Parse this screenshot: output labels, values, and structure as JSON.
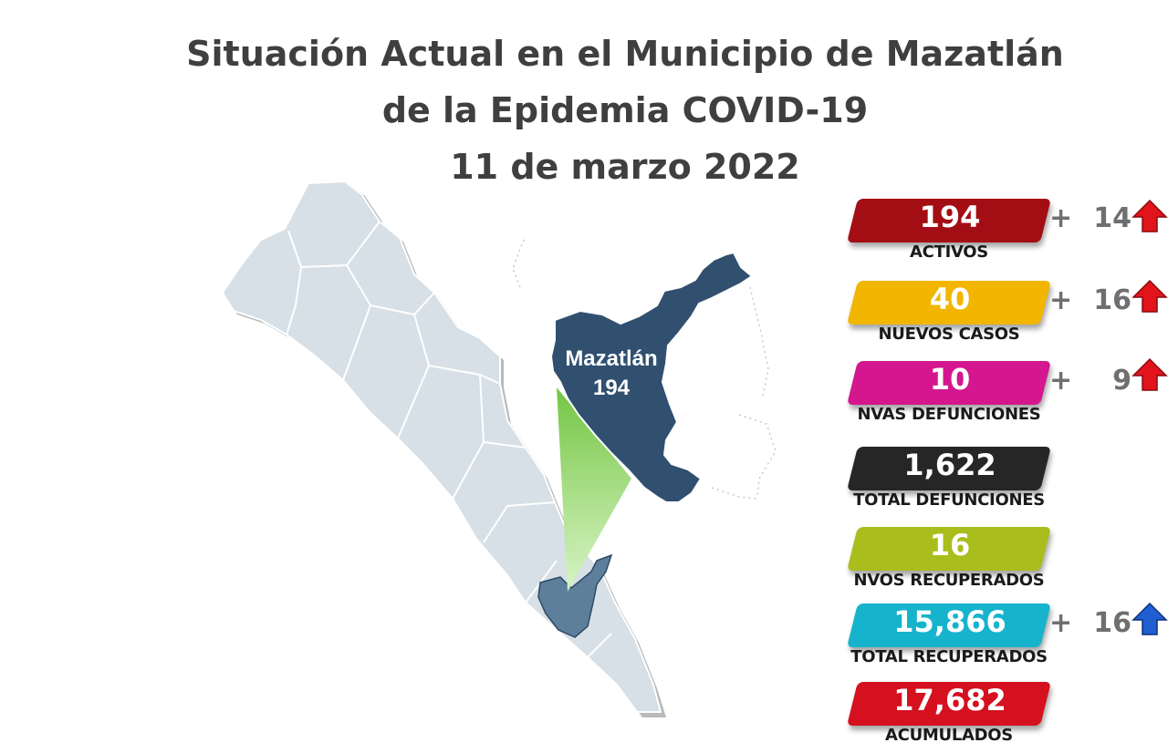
{
  "title": {
    "line1": "Situación Actual en el Municipio de Mazatlán",
    "line2": "de la Epidemia COVID-19",
    "line3": "11 de marzo 2022"
  },
  "map": {
    "region_name": "Mazatlán",
    "region_value": "194",
    "colors": {
      "state_fill": "#d6e0e6",
      "highlight_fill": "#31506f",
      "municipality_fill": "#5d7f9c",
      "callout": "#7ed957"
    }
  },
  "stats": [
    {
      "value": "194",
      "label": "ACTIVOS",
      "color": "#a30d14",
      "delta_sign": "+",
      "delta_value": "14",
      "arrow": "up-arrow-red"
    },
    {
      "value": "40",
      "label": "NUEVOS CASOS",
      "color": "#f2b600",
      "delta_sign": "+",
      "delta_value": "16",
      "arrow": "up-arrow-red"
    },
    {
      "value": "10",
      "label": "NVAS DEFUNCIONES",
      "color": "#d4178e",
      "delta_sign": "+",
      "delta_value": "9",
      "arrow": "up-arrow-red"
    },
    {
      "value": "1,622",
      "label": "TOTAL DEFUNCIONES",
      "color": "#262626"
    },
    {
      "value": "16",
      "label": "NVOS RECUPERADOS",
      "color": "#a9be1c"
    },
    {
      "value": "15,866",
      "label": "TOTAL RECUPERADOS",
      "color": "#16b3cc",
      "delta_sign": "+",
      "delta_value": "16",
      "arrow": "up-arrow-blue"
    },
    {
      "value": "17,682",
      "label": "ACUMULADOS",
      "color": "#d5101f"
    }
  ]
}
